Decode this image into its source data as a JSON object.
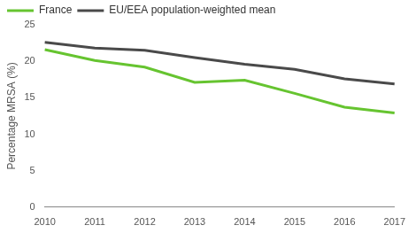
{
  "chart_data": {
    "type": "line",
    "y_label": "Percentage MRSA (%)",
    "categories": [
      "2010",
      "2011",
      "2012",
      "2013",
      "2014",
      "2015",
      "2016",
      "2017"
    ],
    "series": [
      {
        "name": "France",
        "color": "#66c430",
        "values": [
          21.6,
          20.1,
          19.2,
          17.1,
          17.4,
          15.6,
          13.7,
          12.9
        ]
      },
      {
        "name": "EU/EEA population-weighted mean",
        "color": "#4a4a4a",
        "values": [
          22.6,
          21.8,
          21.5,
          20.5,
          19.6,
          18.9,
          17.6,
          16.9
        ]
      }
    ],
    "ylim": [
      0,
      25
    ],
    "yticks": [
      0,
      5,
      10,
      15,
      20,
      25
    ],
    "grid": false,
    "legend": "top-left",
    "marker": "none"
  }
}
